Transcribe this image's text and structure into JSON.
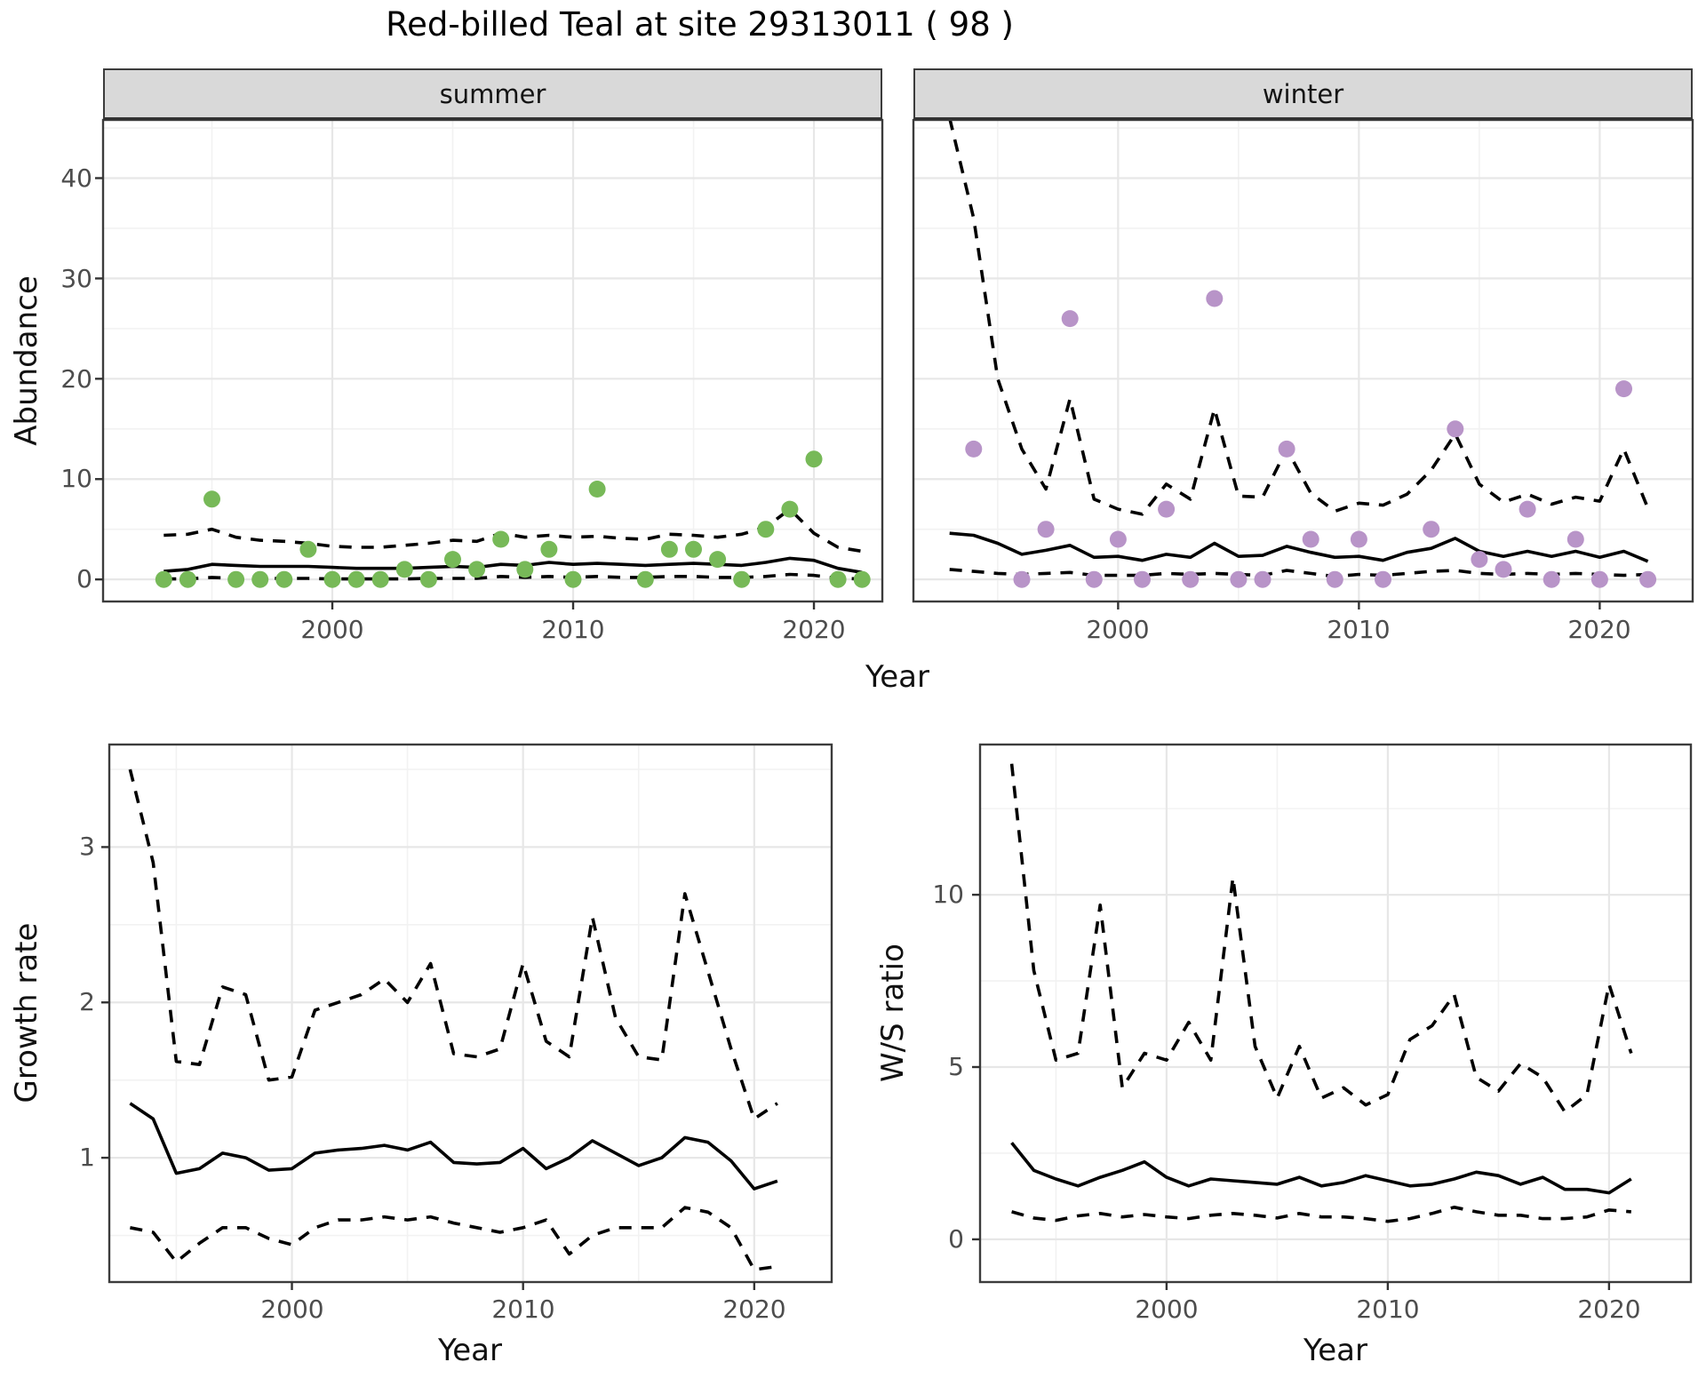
{
  "labels": {
    "title": "Red-billed Teal at site 29313011 ( 98 )",
    "facet_summer": "summer",
    "facet_winter": "winter",
    "abundance": "Abundance",
    "year": "Year",
    "growth_rate": "Growth rate",
    "ws_ratio": "W/S ratio"
  },
  "colors": {
    "summer_points": "#77b958",
    "winter_points": "#b894c8",
    "line": "#000000",
    "strip_fill": "#d9d9d9",
    "grid_major": "#e7e7e7",
    "grid_minor": "#f2f2f2",
    "panel_border": "#3c3c3c",
    "tick_text": "#4d4d4d"
  },
  "chart_data": {
    "type": "line",
    "title": "Red-billed Teal at site 29313011 ( 98 )",
    "description": "Four panels: observed abundance (points) with modelled median (solid) and 95% CI (dashed) for summer and winter facets; growth rate and winter/summer ratio below.",
    "charts": [
      {
        "id": "summer",
        "strip": "summer",
        "xlabel": "Year",
        "ylabel": "Abundance",
        "xlim": [
          1990.48,
          2022.84
        ],
        "ylim": [
          -2.2,
          45.8
        ],
        "xticks": {
          "values": [
            2000,
            2010,
            2020
          ],
          "labels": [
            "2000",
            "2010",
            "2020"
          ]
        },
        "yticks": {
          "values": [
            0,
            10,
            20,
            30,
            40
          ],
          "labels": [
            "0",
            "10",
            "20",
            "30",
            "40"
          ]
        },
        "xminor": [
          1995,
          2005,
          2015
        ],
        "yminor": [
          5,
          15,
          25,
          35,
          45
        ],
        "series": {
          "points": {
            "name": "observed abundance (summer)",
            "color": "#77b958",
            "years": [
              1993,
              1994,
              1995,
              1996,
              1997,
              1998,
              1999,
              2000,
              2001,
              2002,
              2003,
              2004,
              2005,
              2006,
              2007,
              2008,
              2009,
              2010,
              2011,
              2013,
              2014,
              2015,
              2016,
              2017,
              2018,
              2019,
              2020,
              2021,
              2022
            ],
            "values": [
              0,
              0,
              8,
              0,
              0,
              0,
              3,
              0,
              0,
              0,
              1,
              0,
              2,
              1,
              4,
              1,
              3,
              0,
              9,
              0,
              3,
              3,
              2,
              0,
              5,
              7,
              12,
              0,
              0
            ]
          },
          "line_years": [
            1993,
            1994,
            1995,
            1996,
            1997,
            1998,
            1999,
            2000,
            2001,
            2002,
            2003,
            2004,
            2005,
            2006,
            2007,
            2008,
            2009,
            2010,
            2011,
            2012,
            2013,
            2014,
            2015,
            2016,
            2017,
            2018,
            2019,
            2020,
            2021,
            2022
          ],
          "median": [
            0.8,
            1.0,
            1.5,
            1.4,
            1.3,
            1.3,
            1.3,
            1.2,
            1.1,
            1.1,
            1.1,
            1.2,
            1.3,
            1.2,
            1.5,
            1.4,
            1.7,
            1.5,
            1.6,
            1.5,
            1.4,
            1.5,
            1.6,
            1.5,
            1.4,
            1.7,
            2.1,
            1.9,
            1.1,
            0.7
          ],
          "upper": [
            4.4,
            4.5,
            5.0,
            4.2,
            3.9,
            3.8,
            3.6,
            3.3,
            3.2,
            3.2,
            3.4,
            3.6,
            3.9,
            3.8,
            4.6,
            4.2,
            4.4,
            4.2,
            4.3,
            4.1,
            4.0,
            4.5,
            4.4,
            4.2,
            4.5,
            5.2,
            7.0,
            4.6,
            3.2,
            2.8
          ],
          "lower": [
            0.05,
            0.05,
            0.2,
            0.1,
            0.1,
            0.1,
            0.1,
            0.05,
            0.05,
            0.05,
            0.05,
            0.1,
            0.1,
            0.1,
            0.3,
            0.2,
            0.3,
            0.2,
            0.3,
            0.2,
            0.2,
            0.3,
            0.3,
            0.2,
            0.2,
            0.3,
            0.5,
            0.4,
            0.1,
            0.05
          ]
        }
      },
      {
        "id": "winter",
        "strip": "winter",
        "xlabel": "Year",
        "ylabel": "Abundance",
        "xlim": [
          1991.5,
          2023.86
        ],
        "ylim": [
          -2.2,
          45.8
        ],
        "xticks": {
          "values": [
            2000,
            2010,
            2020
          ],
          "labels": [
            "2000",
            "2010",
            "2020"
          ]
        },
        "yticks": null,
        "xminor": [
          1995,
          2005,
          2015
        ],
        "yminor": [
          5,
          15,
          25,
          35,
          45
        ],
        "series": {
          "points": {
            "name": "observed abundance (winter)",
            "color": "#b894c8",
            "years": [
              1994,
              1996,
              1997,
              1998,
              1999,
              2000,
              2001,
              2002,
              2003,
              2004,
              2005,
              2006,
              2007,
              2008,
              2009,
              2010,
              2011,
              2013,
              2014,
              2015,
              2016,
              2017,
              2018,
              2019,
              2020,
              2021,
              2022
            ],
            "values": [
              13,
              0,
              5,
              26,
              0,
              4,
              0,
              7,
              0,
              28,
              0,
              0,
              13,
              4,
              0,
              4,
              0,
              5,
              15,
              2,
              1,
              7,
              0,
              4,
              0,
              19,
              0
            ]
          },
          "line_years": [
            1993,
            1994,
            1995,
            1996,
            1997,
            1998,
            1999,
            2000,
            2001,
            2002,
            2003,
            2004,
            2005,
            2006,
            2007,
            2008,
            2009,
            2010,
            2011,
            2012,
            2013,
            2014,
            2015,
            2016,
            2017,
            2018,
            2019,
            2020,
            2021,
            2022
          ],
          "median": [
            4.6,
            4.4,
            3.6,
            2.5,
            2.9,
            3.4,
            2.2,
            2.3,
            1.9,
            2.5,
            2.2,
            3.6,
            2.3,
            2.4,
            3.3,
            2.7,
            2.2,
            2.3,
            1.9,
            2.7,
            3.1,
            4.1,
            2.8,
            2.3,
            2.8,
            2.3,
            2.8,
            2.2,
            2.8,
            1.8
          ],
          "upper": [
            46,
            36,
            20,
            13,
            9,
            18,
            8,
            7,
            6.5,
            9.5,
            8,
            17,
            8.3,
            8.2,
            13,
            8.6,
            6.8,
            7.6,
            7.4,
            8.5,
            10.9,
            14.5,
            9.5,
            7.7,
            8.5,
            7.5,
            8.2,
            7.8,
            13,
            7.1
          ],
          "lower": [
            1.0,
            0.8,
            0.6,
            0.5,
            0.6,
            0.7,
            0.4,
            0.4,
            0.4,
            0.6,
            0.5,
            0.6,
            0.5,
            0.4,
            0.9,
            0.6,
            0.3,
            0.5,
            0.4,
            0.6,
            0.8,
            0.9,
            0.6,
            0.5,
            0.6,
            0.5,
            0.6,
            0.5,
            0.4,
            0.5
          ]
        }
      },
      {
        "id": "growth",
        "strip": null,
        "xlabel": "Year",
        "ylabel": "Growth rate",
        "xlim": [
          1992.1,
          2023.35
        ],
        "ylim": [
          0.2,
          3.66
        ],
        "xticks": {
          "values": [
            2000,
            2010,
            2020
          ],
          "labels": [
            "2000",
            "2010",
            "2020"
          ]
        },
        "yticks": {
          "values": [
            1,
            2,
            3
          ],
          "labels": [
            "1",
            "2",
            "3"
          ]
        },
        "xminor": [
          1995,
          2005,
          2015
        ],
        "yminor": [
          0.5,
          1.5,
          2.5,
          3.5
        ],
        "series": {
          "points": null,
          "line_years": [
            1993,
            1994,
            1995,
            1996,
            1997,
            1998,
            1999,
            2000,
            2001,
            2002,
            2003,
            2004,
            2005,
            2006,
            2007,
            2008,
            2009,
            2010,
            2011,
            2012,
            2013,
            2014,
            2015,
            2016,
            2017,
            2018,
            2019,
            2020,
            2021
          ],
          "median": [
            1.35,
            1.25,
            0.9,
            0.93,
            1.03,
            1.0,
            0.92,
            0.93,
            1.03,
            1.05,
            1.06,
            1.08,
            1.05,
            1.1,
            0.97,
            0.96,
            0.97,
            1.06,
            0.93,
            1.0,
            1.11,
            1.03,
            0.95,
            1.0,
            1.13,
            1.1,
            0.98,
            0.8,
            0.85
          ],
          "upper": [
            3.5,
            2.9,
            1.62,
            1.6,
            2.1,
            2.05,
            1.5,
            1.52,
            1.95,
            2.0,
            2.05,
            2.15,
            2.0,
            2.25,
            1.67,
            1.65,
            1.7,
            2.25,
            1.75,
            1.65,
            2.55,
            1.9,
            1.65,
            1.63,
            2.7,
            2.2,
            1.7,
            1.25,
            1.35
          ],
          "lower": [
            0.55,
            0.52,
            0.33,
            0.45,
            0.55,
            0.55,
            0.48,
            0.44,
            0.55,
            0.6,
            0.6,
            0.62,
            0.6,
            0.62,
            0.58,
            0.55,
            0.52,
            0.55,
            0.6,
            0.38,
            0.5,
            0.55,
            0.55,
            0.55,
            0.68,
            0.65,
            0.55,
            0.28,
            0.3
          ]
        }
      },
      {
        "id": "ws",
        "strip": null,
        "xlabel": "Year",
        "ylabel": "W/S ratio",
        "xlim": [
          1991.57,
          2023.7
        ],
        "ylim": [
          -1.24,
          14.36
        ],
        "xticks": {
          "values": [
            2000,
            2010,
            2020
          ],
          "labels": [
            "2000",
            "2010",
            "2020"
          ]
        },
        "yticks": {
          "values": [
            0,
            5,
            10
          ],
          "labels": [
            "0",
            "5",
            "10"
          ]
        },
        "xminor": [
          1995,
          2005,
          2015
        ],
        "yminor": [
          2.5,
          7.5,
          12.5
        ],
        "series": {
          "points": null,
          "line_years": [
            1993,
            1994,
            1995,
            1996,
            1997,
            1998,
            1999,
            2000,
            2001,
            2002,
            2003,
            2004,
            2005,
            2006,
            2007,
            2008,
            2009,
            2010,
            2011,
            2012,
            2013,
            2014,
            2015,
            2016,
            2017,
            2018,
            2019,
            2020,
            2021
          ],
          "median": [
            2.8,
            2.0,
            1.75,
            1.55,
            1.8,
            2.0,
            2.25,
            1.8,
            1.55,
            1.75,
            1.7,
            1.65,
            1.6,
            1.8,
            1.55,
            1.65,
            1.85,
            1.7,
            1.55,
            1.6,
            1.75,
            1.95,
            1.85,
            1.6,
            1.8,
            1.45,
            1.45,
            1.35,
            1.75
          ],
          "upper": [
            13.8,
            7.8,
            5.2,
            5.4,
            9.7,
            4.4,
            5.4,
            5.2,
            6.3,
            5.2,
            10.5,
            5.6,
            4.1,
            5.6,
            4.1,
            4.4,
            3.9,
            4.2,
            5.8,
            6.2,
            7.1,
            4.7,
            4.3,
            5.1,
            4.7,
            3.7,
            4.2,
            7.4,
            5.4
          ],
          "lower": [
            0.8,
            0.62,
            0.55,
            0.68,
            0.75,
            0.65,
            0.72,
            0.65,
            0.6,
            0.7,
            0.75,
            0.7,
            0.62,
            0.75,
            0.65,
            0.65,
            0.6,
            0.52,
            0.6,
            0.75,
            0.93,
            0.8,
            0.7,
            0.7,
            0.6,
            0.6,
            0.65,
            0.85,
            0.8
          ]
        }
      }
    ]
  }
}
